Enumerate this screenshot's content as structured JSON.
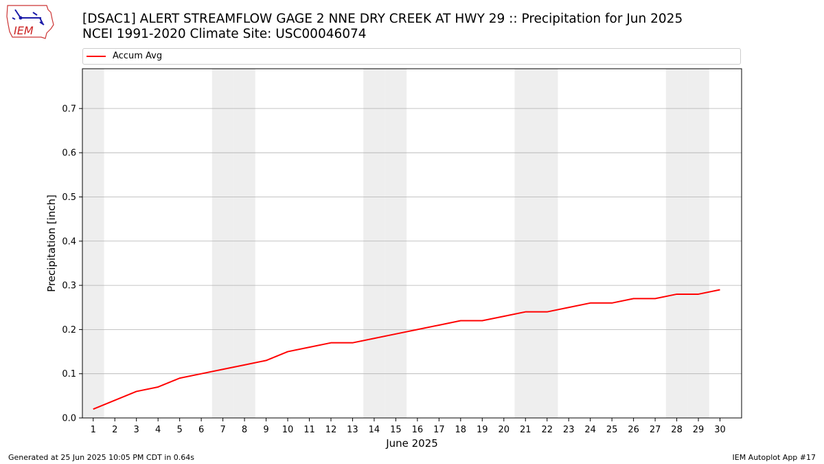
{
  "title_line1": "[DSAC1] ALERT STREAMFLOW GAGE 2 NNE DRY CREEK AT HWY 29 :: Precipitation for Jun 2025",
  "title_line2": "NCEI 1991-2020 Climate Site: USC00046074",
  "logo_text": "IEM",
  "footer_left": "Generated at 25 Jun 2025 10:05 PM CDT in 0.64s",
  "footer_right": "IEM Autoplot App #17",
  "colors": {
    "line": "#ff0000",
    "weekend": "#eeeeee",
    "grid": "#b0b0b0"
  },
  "chart_data": {
    "type": "line",
    "title": "[DSAC1] ALERT STREAMFLOW GAGE 2 NNE DRY CREEK AT HWY 29 :: Precipitation for Jun 2025",
    "subtitle": "NCEI 1991-2020 Climate Site: USC00046074",
    "xlabel": "June 2025",
    "ylabel": "Precipitation [inch]",
    "xlim": [
      0.5,
      31
    ],
    "ylim": [
      0,
      0.79
    ],
    "x": [
      1,
      2,
      3,
      4,
      5,
      6,
      7,
      8,
      9,
      10,
      11,
      12,
      13,
      14,
      15,
      16,
      17,
      18,
      19,
      20,
      21,
      22,
      23,
      24,
      25,
      26,
      27,
      28,
      29,
      30
    ],
    "yticks": [
      0.0,
      0.1,
      0.2,
      0.3,
      0.4,
      0.5,
      0.6,
      0.7
    ],
    "ytick_labels": [
      "0.0",
      "0.1",
      "0.2",
      "0.3",
      "0.4",
      "0.5",
      "0.6",
      "0.7"
    ],
    "weekend_days": [
      1,
      7,
      8,
      14,
      15,
      21,
      22,
      28,
      29
    ],
    "grid": "y",
    "legend_position": "top",
    "series": [
      {
        "name": "Accum Avg",
        "color": "#ff0000",
        "values": [
          0.02,
          0.04,
          0.06,
          0.07,
          0.09,
          0.1,
          0.11,
          0.12,
          0.13,
          0.15,
          0.16,
          0.17,
          0.17,
          0.18,
          0.19,
          0.2,
          0.21,
          0.22,
          0.22,
          0.23,
          0.24,
          0.24,
          0.25,
          0.26,
          0.26,
          0.27,
          0.27,
          0.28,
          0.28,
          0.29
        ]
      }
    ]
  }
}
